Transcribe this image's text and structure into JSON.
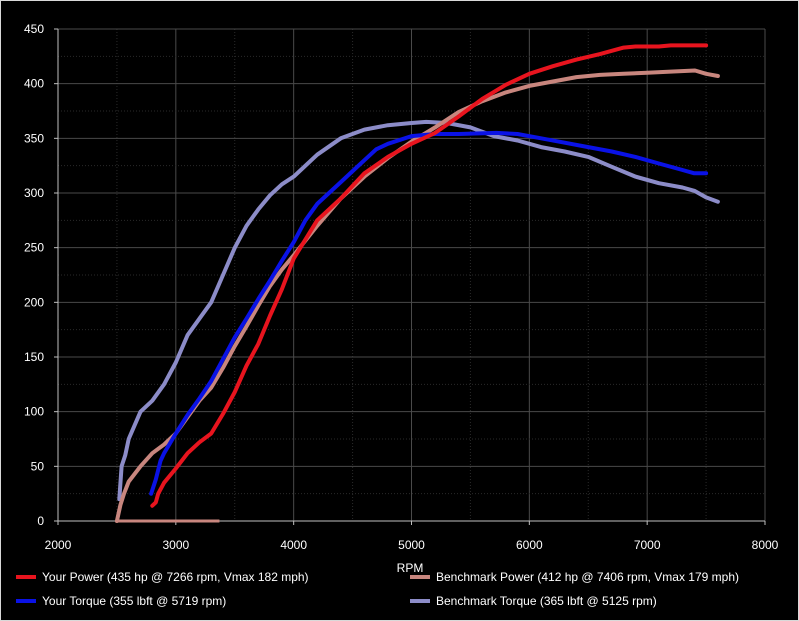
{
  "chart_data": {
    "type": "line",
    "title": "",
    "xlabel": "RPM",
    "ylabel": "",
    "xlim": [
      2000,
      8000
    ],
    "ylim": [
      0,
      450
    ],
    "xticks": [
      2000,
      3000,
      4000,
      5000,
      6000,
      7000,
      8000
    ],
    "yticks": [
      0,
      50,
      100,
      150,
      200,
      250,
      300,
      350,
      400,
      450
    ],
    "grid": true,
    "legend_position": "bottom",
    "series": [
      {
        "name": "Your Power (435 hp @ 7266 rpm, Vmax 182 mph)",
        "color": "#e8141e",
        "x": [
          2800,
          2830,
          2850,
          2900,
          3000,
          3100,
          3200,
          3300,
          3400,
          3500,
          3600,
          3700,
          3800,
          3900,
          4000,
          4200,
          4400,
          4600,
          4800,
          5000,
          5200,
          5400,
          5600,
          5800,
          6000,
          6200,
          6400,
          6600,
          6800,
          6900,
          7000,
          7100,
          7200,
          7266,
          7300,
          7400,
          7500
        ],
        "y": [
          14,
          17,
          25,
          35,
          48,
          62,
          72,
          80,
          98,
          118,
          142,
          162,
          188,
          212,
          240,
          275,
          295,
          318,
          333,
          345,
          355,
          370,
          386,
          399,
          409,
          416,
          422,
          427,
          433,
          434,
          434,
          434,
          435,
          435,
          435,
          435,
          435
        ]
      },
      {
        "name": "Your Torque (355 lbft @ 5719 rpm)",
        "color": "#0a12e6",
        "x": [
          2790,
          2830,
          2870,
          2900,
          3000,
          3100,
          3200,
          3300,
          3400,
          3500,
          3600,
          3700,
          3800,
          3900,
          4000,
          4100,
          4200,
          4300,
          4400,
          4500,
          4600,
          4700,
          4800,
          5000,
          5200,
          5400,
          5719,
          5900,
          6100,
          6300,
          6500,
          6700,
          6900,
          7100,
          7300,
          7400,
          7500
        ],
        "y": [
          25,
          38,
          55,
          62,
          80,
          97,
          112,
          128,
          148,
          168,
          185,
          203,
          220,
          238,
          255,
          275,
          290,
          300,
          310,
          320,
          330,
          340,
          345,
          352,
          354,
          354,
          355,
          354,
          350,
          346,
          342,
          338,
          333,
          327,
          321,
          318,
          318
        ]
      },
      {
        "name": "Benchmark Power (412 hp @ 7406 rpm, Vmax 179 mph)",
        "color": "#c8867e",
        "x": [
          2500,
          2530,
          2560,
          2600,
          2700,
          2800,
          2900,
          3000,
          3100,
          3200,
          3300,
          3400,
          3500,
          3600,
          3700,
          3800,
          3900,
          4000,
          4200,
          4400,
          4600,
          4800,
          5000,
          5200,
          5400,
          5600,
          5800,
          6000,
          6200,
          6400,
          6600,
          6800,
          7000,
          7200,
          7406,
          7500,
          7600
        ],
        "y": [
          0,
          15,
          25,
          36,
          50,
          62,
          70,
          80,
          95,
          110,
          122,
          140,
          160,
          178,
          197,
          215,
          230,
          243,
          270,
          295,
          315,
          332,
          347,
          360,
          374,
          384,
          392,
          398,
          402,
          406,
          408,
          409,
          410,
          411,
          412,
          409,
          407
        ]
      },
      {
        "name": "Benchmark Torque (365 lbft @ 5125 rpm)",
        "color": "#8c8cc8",
        "x": [
          2520,
          2540,
          2570,
          2600,
          2700,
          2800,
          2900,
          3000,
          3100,
          3200,
          3300,
          3400,
          3500,
          3600,
          3700,
          3800,
          3900,
          4000,
          4200,
          4400,
          4600,
          4800,
          5000,
          5125,
          5300,
          5500,
          5700,
          5900,
          6100,
          6300,
          6500,
          6700,
          6900,
          7100,
          7300,
          7400,
          7500,
          7600
        ],
        "y": [
          20,
          50,
          60,
          75,
          100,
          110,
          125,
          145,
          170,
          185,
          200,
          225,
          250,
          270,
          285,
          298,
          308,
          315,
          335,
          350,
          358,
          362,
          364,
          365,
          364,
          360,
          352,
          348,
          342,
          338,
          333,
          324,
          315,
          309,
          305,
          302,
          296,
          292
        ]
      }
    ]
  },
  "benchmark_power_baseline": {
    "x": [
      2500,
      3370
    ],
    "y": [
      0,
      0
    ]
  }
}
